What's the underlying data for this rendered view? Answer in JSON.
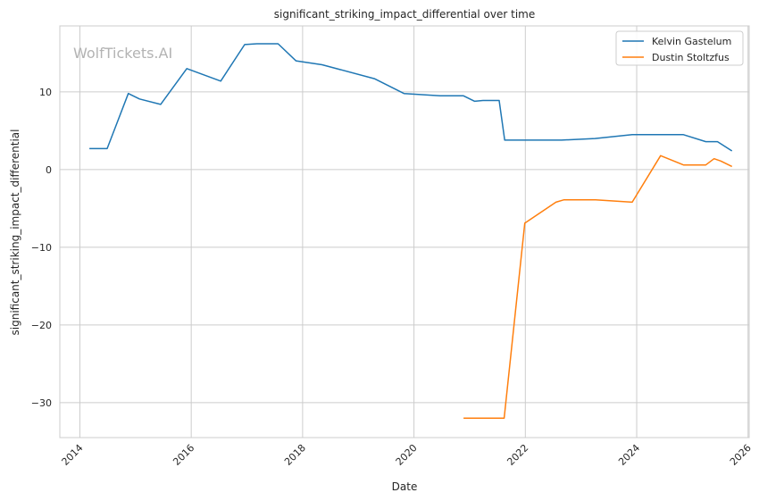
{
  "chart_data": {
    "type": "line",
    "title": "significant_striking_impact_differential over time",
    "xlabel": "Date",
    "ylabel": "significant_striking_impact_differential",
    "watermark": "WolfTickets.AI",
    "x_ticks": [
      "2014",
      "2016",
      "2018",
      "2020",
      "2022",
      "2024",
      "2026"
    ],
    "y_ticks": [
      "−30",
      "−20",
      "−10",
      "0",
      "10"
    ],
    "x_tick_values": [
      2014,
      2016,
      2018,
      2020,
      2022,
      2024,
      2026
    ],
    "y_tick_values": [
      -30,
      -20,
      -10,
      0,
      10
    ],
    "xlim": [
      2013.64,
      2026.02
    ],
    "ylim": [
      -34.5,
      18.5
    ],
    "grid": true,
    "legend_position": "top-right",
    "series": [
      {
        "name": "Kelvin Gastelum",
        "color": "#1f77b4",
        "x": [
          2014.17,
          2014.49,
          2014.87,
          2015.07,
          2015.45,
          2015.92,
          2016.53,
          2016.96,
          2017.18,
          2017.56,
          2017.88,
          2018.35,
          2019.29,
          2019.82,
          2020.47,
          2020.89,
          2021.09,
          2021.24,
          2021.53,
          2021.63,
          2022.65,
          2023.25,
          2023.92,
          2024.84,
          2025.24,
          2025.45,
          2025.71
        ],
        "y": [
          2.7,
          2.7,
          9.8,
          9.1,
          8.4,
          13.0,
          11.4,
          16.1,
          16.2,
          16.2,
          14.0,
          13.5,
          11.7,
          9.8,
          9.5,
          9.5,
          8.8,
          8.9,
          8.9,
          3.8,
          3.8,
          4.0,
          4.5,
          4.5,
          3.6,
          3.6,
          2.4
        ]
      },
      {
        "name": "Dustin Stoltzfus",
        "color": "#ff7f0e",
        "x": [
          2020.89,
          2021.18,
          2021.62,
          2021.99,
          2022.55,
          2022.69,
          2023.26,
          2023.92,
          2024.43,
          2024.84,
          2025.24,
          2025.39,
          2025.51,
          2025.71
        ],
        "y": [
          -32.0,
          -32.0,
          -32.0,
          -6.9,
          -4.2,
          -3.9,
          -3.9,
          -4.2,
          1.8,
          0.6,
          0.6,
          1.4,
          1.1,
          0.4
        ]
      }
    ]
  }
}
